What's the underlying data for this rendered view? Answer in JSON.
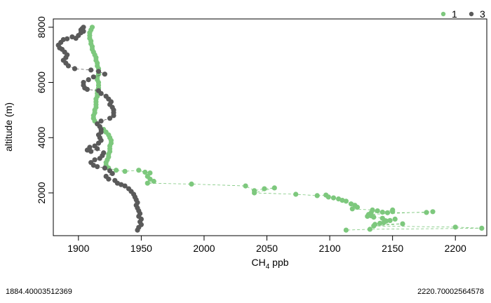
{
  "chart_data": {
    "type": "scatter",
    "xlabel_main": "CH",
    "xlabel_sub": "4",
    "xlabel_rest": " ppb",
    "ylabel": "altitude (m)",
    "xlim": [
      1880,
      2225
    ],
    "ylim": [
      450,
      8300
    ],
    "x_ticks": [
      1900,
      1950,
      2000,
      2050,
      2100,
      2150,
      2200
    ],
    "x_tick_labels": [
      "1900",
      "1950",
      "2000",
      "2050",
      "2100",
      "2150",
      "2200"
    ],
    "y_ticks": [
      2000,
      4000,
      6000,
      8000
    ],
    "y_tick_labels": [
      "2000",
      "4000",
      "6000",
      "8000"
    ],
    "legend": {
      "position": "top-right",
      "entries": [
        "1",
        "3"
      ]
    },
    "footer_left": "1884.40003512369",
    "footer_right": "2220.70002564578",
    "series": [
      {
        "name": "1",
        "color": "#7dc87d",
        "points": [
          [
            1911,
            8000
          ],
          [
            1910,
            7900
          ],
          [
            1909,
            7800
          ],
          [
            1909,
            7700
          ],
          [
            1909,
            7600
          ],
          [
            1910,
            7500
          ],
          [
            1910,
            7400
          ],
          [
            1911,
            7300
          ],
          [
            1911,
            7200
          ],
          [
            1912,
            7100
          ],
          [
            1913,
            7000
          ],
          [
            1914,
            6900
          ],
          [
            1914,
            6800
          ],
          [
            1915,
            6700
          ],
          [
            1915,
            6600
          ],
          [
            1916,
            6500
          ],
          [
            1916,
            6400
          ],
          [
            1916,
            6300
          ],
          [
            1915,
            6200
          ],
          [
            1915,
            6100
          ],
          [
            1916,
            6000
          ],
          [
            1916,
            5900
          ],
          [
            1916,
            5800
          ],
          [
            1915,
            5700
          ],
          [
            1915,
            5600
          ],
          [
            1915,
            5500
          ],
          [
            1914,
            5400
          ],
          [
            1914,
            5300
          ],
          [
            1914,
            5200
          ],
          [
            1914,
            5100
          ],
          [
            1913,
            5000
          ],
          [
            1913,
            4900
          ],
          [
            1912,
            4800
          ],
          [
            1912,
            4700
          ],
          [
            1913,
            4600
          ],
          [
            1915,
            4500
          ],
          [
            1917,
            4400
          ],
          [
            1920,
            4300
          ],
          [
            1922,
            4200
          ],
          [
            1924,
            4100
          ],
          [
            1925,
            4000
          ],
          [
            1926,
            3900
          ],
          [
            1926,
            3800
          ],
          [
            1925,
            3700
          ],
          [
            1925,
            3600
          ],
          [
            1925,
            3500
          ],
          [
            1924,
            3400
          ],
          [
            1924,
            3300
          ],
          [
            1923,
            3200
          ],
          [
            1922,
            3100
          ],
          [
            1922,
            3000
          ],
          [
            1924,
            2900
          ],
          [
            1930,
            2820
          ],
          [
            1937,
            2780
          ],
          [
            1948,
            2820
          ],
          [
            1953,
            2750
          ],
          [
            1957,
            2720
          ],
          [
            1955,
            2600
          ],
          [
            1957,
            2500
          ],
          [
            1960,
            2420
          ],
          [
            1955,
            2350
          ],
          [
            1990,
            2320
          ],
          [
            2033,
            2250
          ],
          [
            2040,
            2080
          ],
          [
            2048,
            2150
          ],
          [
            2056,
            2180
          ],
          [
            2040,
            2000
          ],
          [
            2073,
            1950
          ],
          [
            2090,
            1900
          ],
          [
            2097,
            1920
          ],
          [
            2099,
            1850
          ],
          [
            2103,
            1820
          ],
          [
            2107,
            1780
          ],
          [
            2110,
            1730
          ],
          [
            2113,
            1700
          ],
          [
            2117,
            1600
          ],
          [
            2120,
            1550
          ],
          [
            2122,
            1480
          ],
          [
            2118,
            1420
          ],
          [
            2134,
            1380
          ],
          [
            2138,
            1350
          ],
          [
            2133,
            1280
          ],
          [
            2142,
            1300
          ],
          [
            2150,
            1380
          ],
          [
            2150,
            1320
          ],
          [
            2146,
            1280
          ],
          [
            2177,
            1290
          ],
          [
            2182,
            1320
          ],
          [
            2131,
            1220
          ],
          [
            2133,
            1170
          ],
          [
            2130,
            1150
          ],
          [
            2135,
            1120
          ],
          [
            2142,
            1080
          ],
          [
            2152,
            1050
          ],
          [
            2148,
            1000
          ],
          [
            2145,
            980
          ],
          [
            2143,
            920
          ],
          [
            2140,
            900
          ],
          [
            2136,
            860
          ],
          [
            2158,
            880
          ],
          [
            2135,
            800
          ],
          [
            2200,
            760
          ],
          [
            2221,
            720
          ],
          [
            2132,
            680
          ],
          [
            2113,
            650
          ]
        ]
      },
      {
        "name": "3",
        "color": "#5a5a5a",
        "points": [
          [
            1904,
            8000
          ],
          [
            1903,
            7950
          ],
          [
            1902,
            7900
          ],
          [
            1904,
            7850
          ],
          [
            1902,
            7800
          ],
          [
            1900,
            7700
          ],
          [
            1898,
            7600
          ],
          [
            1895,
            7650
          ],
          [
            1891,
            7580
          ],
          [
            1888,
            7550
          ],
          [
            1886,
            7450
          ],
          [
            1884,
            7350
          ],
          [
            1885,
            7250
          ],
          [
            1887,
            7200
          ],
          [
            1889,
            7100
          ],
          [
            1891,
            7000
          ],
          [
            1890,
            6900
          ],
          [
            1888,
            6800
          ],
          [
            1890,
            6700
          ],
          [
            1892,
            6600
          ],
          [
            1897,
            6500
          ],
          [
            1910,
            6450
          ],
          [
            1916,
            6400
          ],
          [
            1921,
            6300
          ],
          [
            1912,
            6200
          ],
          [
            1908,
            6100
          ],
          [
            1904,
            6000
          ],
          [
            1904,
            5900
          ],
          [
            1905,
            5800
          ],
          [
            1907,
            5750
          ],
          [
            1916,
            5700
          ],
          [
            1918,
            5600
          ],
          [
            1922,
            5500
          ],
          [
            1924,
            5400
          ],
          [
            1926,
            5300
          ],
          [
            1925,
            5200
          ],
          [
            1927,
            5100
          ],
          [
            1928,
            5000
          ],
          [
            1928,
            4900
          ],
          [
            1928,
            4800
          ],
          [
            1925,
            4700
          ],
          [
            1918,
            4600
          ],
          [
            1915,
            4500
          ],
          [
            1917,
            4400
          ],
          [
            1918,
            4300
          ],
          [
            1918,
            4200
          ],
          [
            1916,
            4100
          ],
          [
            1917,
            4000
          ],
          [
            1918,
            3900
          ],
          [
            1916,
            3800
          ],
          [
            1913,
            3700
          ],
          [
            1909,
            3650
          ],
          [
            1907,
            3550
          ],
          [
            1910,
            3500
          ],
          [
            1915,
            3600
          ],
          [
            1920,
            3450
          ],
          [
            1919,
            3350
          ],
          [
            1917,
            3250
          ],
          [
            1913,
            3200
          ],
          [
            1910,
            3100
          ],
          [
            1912,
            3000
          ],
          [
            1915,
            2950
          ],
          [
            1921,
            2900
          ],
          [
            1925,
            2800
          ],
          [
            1927,
            2700
          ],
          [
            1922,
            2600
          ],
          [
            1924,
            2500
          ],
          [
            1929,
            2450
          ],
          [
            1931,
            2350
          ],
          [
            1934,
            2300
          ],
          [
            1937,
            2250
          ],
          [
            1940,
            2150
          ],
          [
            1942,
            2050
          ],
          [
            1944,
            1950
          ],
          [
            1945,
            1850
          ],
          [
            1946,
            1750
          ],
          [
            1947,
            1650
          ],
          [
            1946,
            1550
          ],
          [
            1947,
            1450
          ],
          [
            1948,
            1350
          ],
          [
            1949,
            1250
          ],
          [
            1948,
            1150
          ],
          [
            1950,
            1050
          ],
          [
            1949,
            950
          ],
          [
            1950,
            850
          ],
          [
            1948,
            750
          ],
          [
            1947,
            650
          ]
        ]
      }
    ]
  }
}
